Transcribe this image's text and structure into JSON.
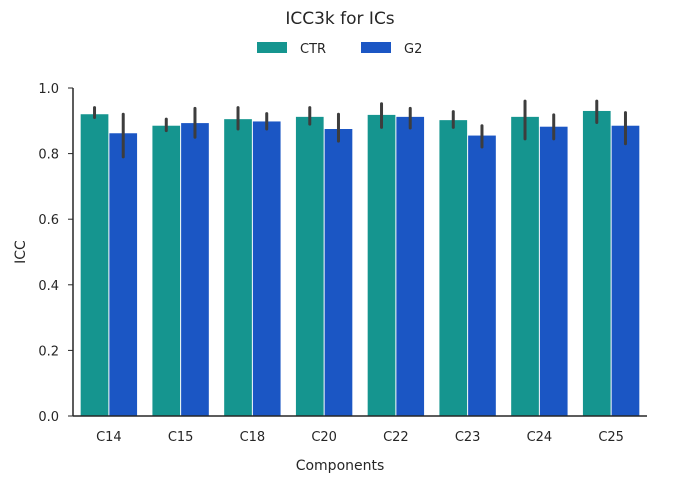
{
  "chart_data": {
    "type": "bar",
    "title": "ICC3k for ICs",
    "xlabel": "Components",
    "ylabel": "ICC",
    "categories": [
      "C14",
      "C15",
      "C18",
      "C20",
      "C22",
      "C23",
      "C24",
      "C25"
    ],
    "ylim": [
      0,
      1.0
    ],
    "yticks": [
      0.0,
      0.2,
      0.4,
      0.6,
      0.8,
      1.0
    ],
    "ytick_labels": [
      "0.0",
      "0.2",
      "0.4",
      "0.6",
      "0.8",
      "1.0"
    ],
    "grid": false,
    "legend_position": "top-center",
    "series": [
      {
        "name": "CTR",
        "color": "#15958f",
        "values": [
          0.92,
          0.885,
          0.905,
          0.912,
          0.918,
          0.902,
          0.912,
          0.93
        ],
        "error_low": [
          0.91,
          0.87,
          0.875,
          0.89,
          0.88,
          0.88,
          0.845,
          0.895
        ],
        "error_high": [
          0.94,
          0.905,
          0.94,
          0.94,
          0.952,
          0.928,
          0.96,
          0.96
        ]
      },
      {
        "name": "G2",
        "color": "#1b56c4",
        "values": [
          0.862,
          0.893,
          0.898,
          0.875,
          0.912,
          0.855,
          0.882,
          0.885
        ],
        "error_low": [
          0.79,
          0.85,
          0.875,
          0.838,
          0.878,
          0.82,
          0.845,
          0.83
        ],
        "error_high": [
          0.92,
          0.938,
          0.922,
          0.92,
          0.938,
          0.885,
          0.918,
          0.925
        ]
      }
    ]
  }
}
